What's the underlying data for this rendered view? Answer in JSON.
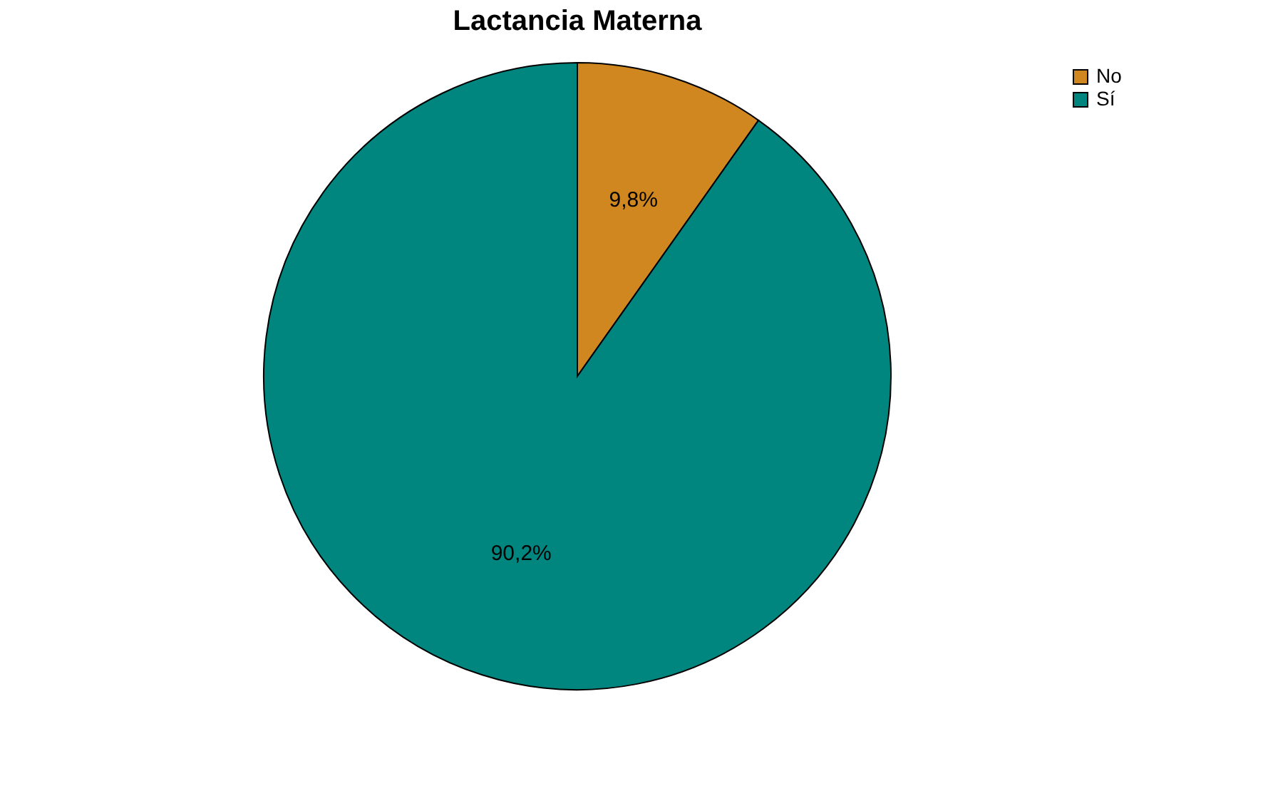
{
  "chart_data": {
    "type": "pie",
    "title": "Lactancia Materna",
    "categories": [
      "No",
      "Sí"
    ],
    "values": [
      9.8,
      90.2
    ],
    "colors": [
      "#d0871f",
      "#00857f"
    ],
    "value_labels": [
      "9,8%",
      "90,2%"
    ],
    "legend": "top right"
  }
}
